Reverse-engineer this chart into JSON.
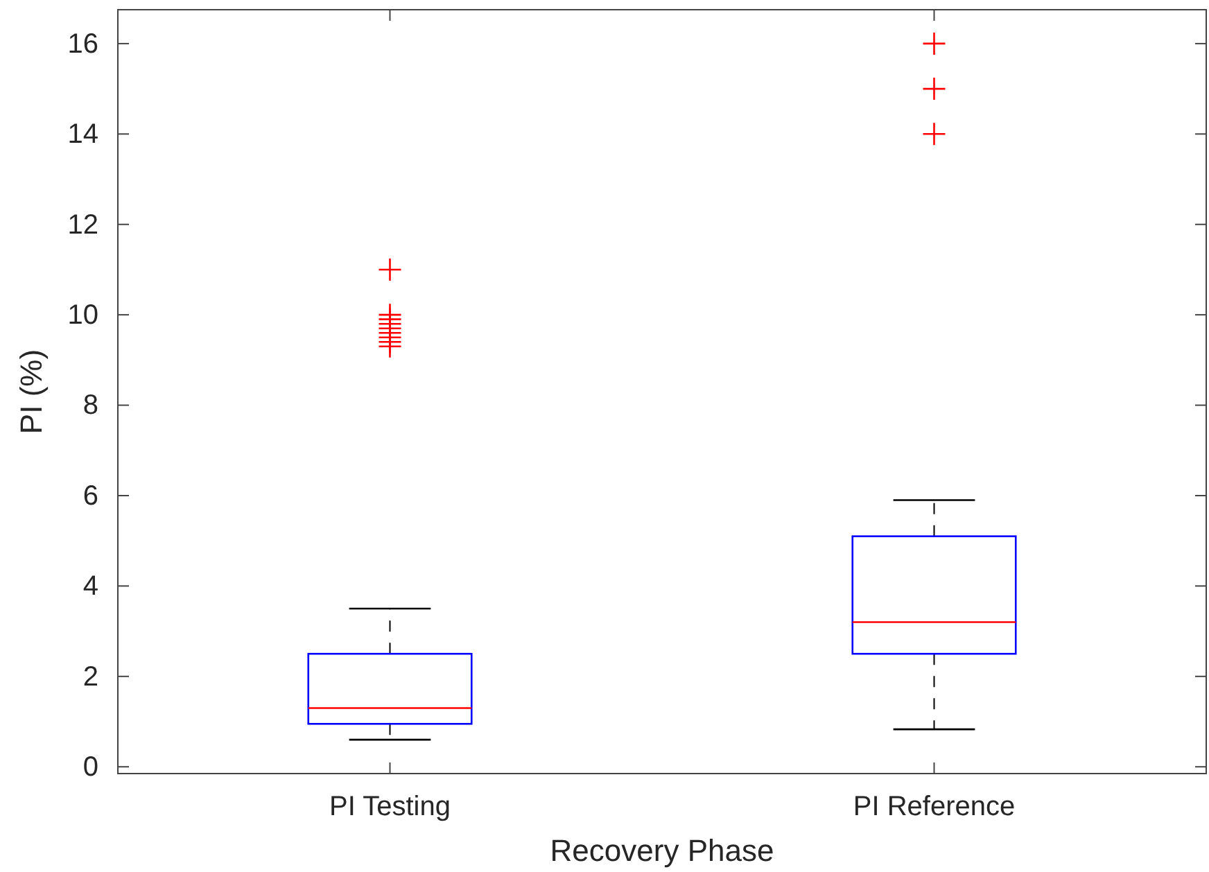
{
  "chart_data": {
    "type": "box",
    "xlabel": "Recovery Phase",
    "ylabel": "PI (%)",
    "categories": [
      "PI Testing",
      "PI Reference"
    ],
    "ylim": [
      -0.15,
      16.75
    ],
    "yticks": [
      0,
      2,
      4,
      6,
      8,
      10,
      12,
      14,
      16
    ],
    "grid": false,
    "marker": "cross",
    "color": "#0000ff",
    "boxes": [
      {
        "low": 0.6,
        "q1": 0.95,
        "median": 1.3,
        "q3": 2.5,
        "high": 3.5,
        "outliers": [
          11,
          10,
          9.9,
          9.8,
          9.7,
          9.6,
          9.5,
          9.4,
          9.3
        ]
      },
      {
        "low": 0.83,
        "q1": 2.5,
        "median": 3.2,
        "q3": 5.1,
        "high": 5.9,
        "outliers": [
          16,
          15,
          14
        ]
      }
    ]
  }
}
